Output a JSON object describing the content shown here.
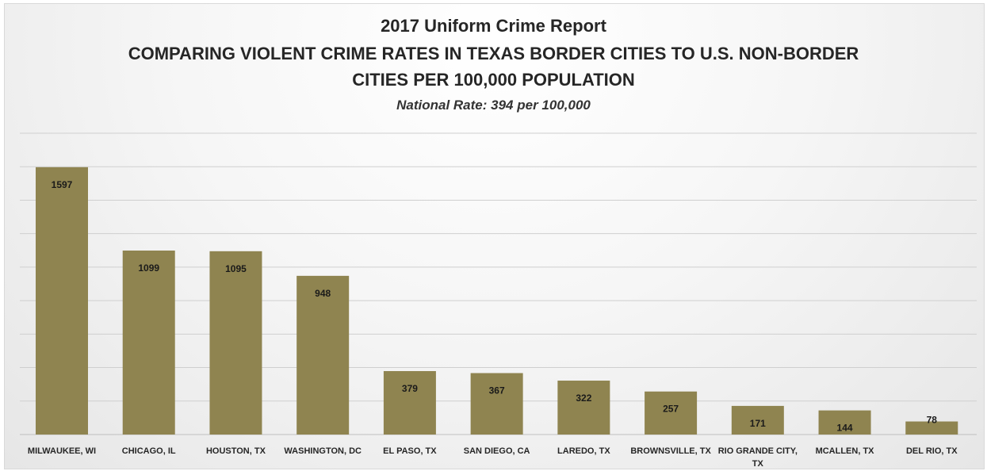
{
  "titles": {
    "line1": "2017 Uniform Crime Report",
    "line2": "COMPARING VIOLENT CRIME RATES IN TEXAS BORDER CITIES TO U.S. NON-BORDER",
    "line3": "CITIES PER 100,000 POPULATION",
    "subtitle": "National Rate: 394 per 100,000"
  },
  "colors": {
    "bar": "#8f8450",
    "grid": "#cfcfcf",
    "label": "#1a1a1a"
  },
  "chart_data": {
    "type": "bar",
    "title": "2017 Uniform Crime Report",
    "subtitle": "COMPARING VIOLENT CRIME RATES IN TEXAS BORDER CITIES TO U.S. NON-BORDER CITIES PER 100,000 POPULATION",
    "annotation": "National Rate: 394 per 100,000",
    "categories": [
      "MILWAUKEE, WI",
      "CHICAGO, IL",
      "HOUSTON, TX",
      "WASHINGTON, DC",
      "EL PASO, TX",
      "SAN DIEGO, CA",
      "LAREDO, TX",
      "BROWNSVILLE, TX",
      "RIO GRANDE CITY, TX",
      "MCALLEN, TX",
      "DEL RIO, TX"
    ],
    "values": [
      1597,
      1099,
      1095,
      948,
      379,
      367,
      322,
      257,
      171,
      144,
      78
    ],
    "data_labels": [
      "1597",
      "1099",
      "1095",
      "948",
      "379",
      "367",
      "322",
      "257",
      "171",
      "144",
      "78"
    ],
    "xlabel": "",
    "ylabel": "",
    "ylim": [
      0,
      1800
    ],
    "grid": true,
    "legend": "none"
  }
}
